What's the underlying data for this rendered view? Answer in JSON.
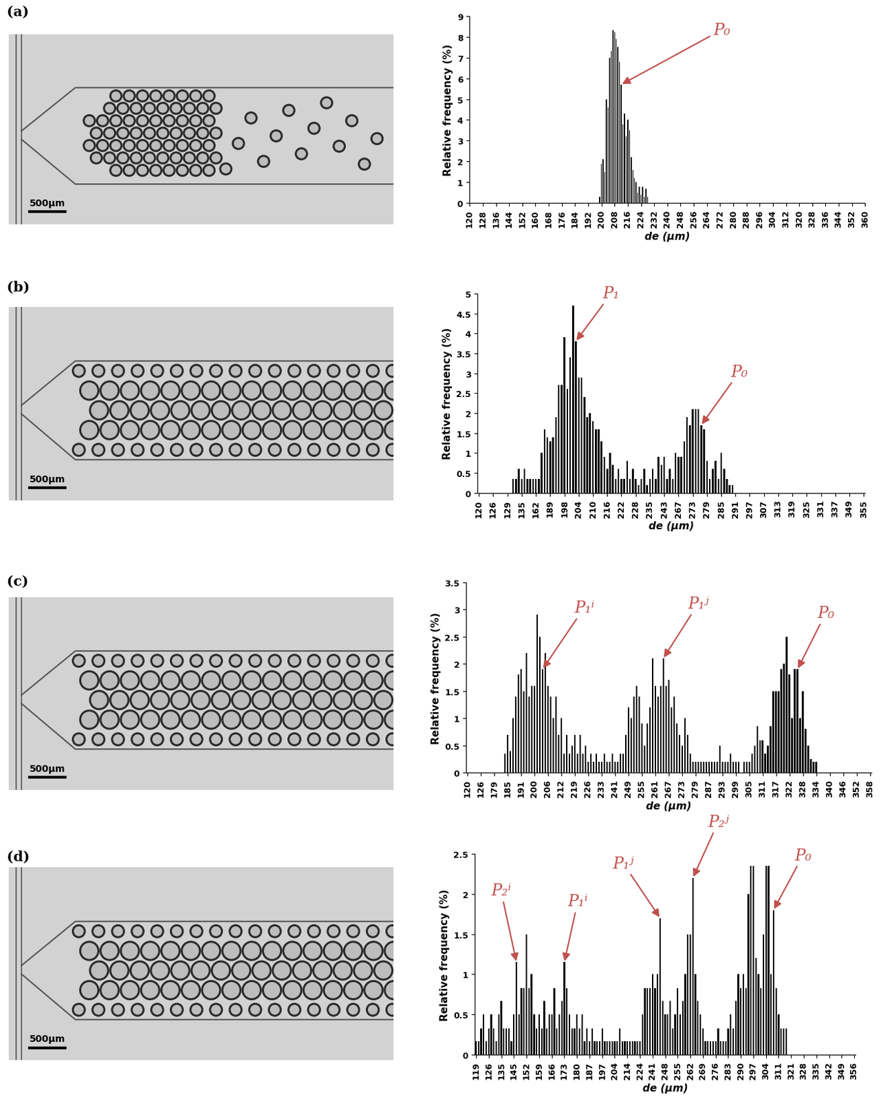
{
  "figure": {
    "panel_labels": [
      "(a)",
      "(b)",
      "(c)",
      "(d)"
    ],
    "scale_bar": "500μm"
  },
  "chart_data": [
    {
      "type": "bar",
      "x_label": "de (μm)",
      "y_label": "Relative frequency (%)",
      "color": "#000000",
      "x": [
        199,
        200,
        201,
        202,
        203,
        204,
        205,
        206,
        207,
        208,
        209,
        210,
        211,
        212,
        213,
        214,
        215,
        216,
        217,
        218,
        219,
        220,
        221,
        222,
        223,
        224,
        225,
        226,
        227,
        228
      ],
      "values": [
        0.3,
        1.9,
        2.1,
        1.5,
        5.0,
        4.6,
        7.0,
        7.3,
        8.3,
        8.2,
        7.9,
        7.5,
        6.8,
        5.7,
        3.8,
        4.3,
        3.2,
        4.0,
        3.5,
        2.2,
        1.6,
        1.2,
        1.0,
        0.5,
        0.8,
        0.4,
        0.8,
        0.3,
        0.7,
        0.3
      ],
      "xlim": [
        120,
        360
      ],
      "xticks": [
        120,
        128,
        136,
        144,
        152,
        160,
        168,
        176,
        184,
        192,
        200,
        208,
        216,
        224,
        232,
        240,
        248,
        256,
        264,
        272,
        280,
        288,
        296,
        304,
        312,
        320,
        328,
        336,
        344,
        352,
        360
      ],
      "ylim": [
        0,
        9
      ],
      "yticks": [
        0,
        1,
        2,
        3,
        4,
        5,
        6,
        7,
        8,
        9
      ],
      "annotations": [
        {
          "text": "P₀",
          "x": 212,
          "y": 5.7
        }
      ]
    },
    {
      "type": "bar",
      "x_label": "de (μm)",
      "y_label": "Relative frequency (%)",
      "color": "#000000",
      "categories": [
        "120",
        null,
        null,
        null,
        null,
        "126",
        null,
        null,
        null,
        null,
        "129",
        null,
        null,
        null,
        null,
        "135",
        null,
        null,
        null,
        null,
        "162",
        null,
        null,
        null,
        null,
        "189",
        null,
        null,
        null,
        null,
        "198",
        null,
        null,
        null,
        null,
        "204",
        null,
        null,
        null,
        null,
        "210",
        null,
        null,
        null,
        null,
        "216",
        null,
        null,
        null,
        null,
        "222",
        null,
        null,
        null,
        null,
        "228",
        null,
        null,
        null,
        null,
        "235",
        null,
        null,
        null,
        null,
        "243",
        null,
        null,
        null,
        null,
        "267",
        null,
        null,
        null,
        null,
        "273",
        null,
        null,
        null,
        null,
        "279",
        null,
        null,
        null,
        null,
        "285",
        null,
        null,
        null,
        null,
        "291",
        null,
        null,
        null,
        null,
        "297",
        null,
        null,
        null,
        null,
        "307",
        null,
        null,
        null,
        null,
        "313",
        null,
        null,
        null,
        null,
        "319",
        null,
        null,
        null,
        null,
        "325",
        null,
        null,
        null,
        null,
        "331",
        null,
        null,
        null,
        null,
        "337",
        null,
        null,
        null,
        null,
        "349",
        null,
        null,
        null,
        null,
        "355"
      ],
      "values": [
        0,
        0,
        0,
        0,
        0,
        0,
        0,
        0,
        0,
        0,
        0,
        0,
        0.35,
        0.35,
        0.6,
        0.35,
        0.6,
        0.35,
        0.35,
        0.35,
        0.35,
        0.35,
        1.0,
        1.6,
        1.4,
        1.3,
        1.4,
        1.9,
        2.7,
        2.7,
        3.9,
        2.6,
        3.4,
        4.7,
        3.8,
        2.9,
        2.9,
        2.4,
        1.9,
        2.0,
        1.8,
        1.6,
        1.6,
        1.3,
        0.9,
        0.6,
        1.0,
        0.7,
        0.35,
        0.6,
        0.35,
        0.35,
        0.8,
        0.35,
        0.6,
        0.35,
        0.2,
        0.35,
        0.6,
        0.2,
        0.35,
        0.6,
        0.35,
        0.9,
        0.7,
        0.9,
        0.35,
        0.6,
        0.35,
        1.0,
        0.9,
        0.9,
        1.3,
        1.9,
        1.7,
        2.1,
        2.1,
        2.1,
        1.7,
        1.6,
        0.8,
        0.35,
        0.6,
        0.8,
        0.35,
        1.0,
        0.6,
        0.35,
        0.2,
        0.2,
        0,
        0,
        0,
        0,
        0,
        0,
        0,
        0,
        0,
        0,
        0,
        0,
        0,
        0,
        0,
        0,
        0,
        0,
        0,
        0,
        0,
        0,
        0,
        0,
        0,
        0,
        0,
        0,
        0,
        0,
        0,
        0,
        0,
        0,
        0,
        0,
        0,
        0,
        0,
        0,
        0,
        0,
        0,
        0,
        0,
        0
      ],
      "ylim": [
        0,
        5
      ],
      "yticks": [
        0,
        0.5,
        1,
        1.5,
        2,
        2.5,
        3,
        3.5,
        4,
        4.5,
        5
      ],
      "annotations": [
        {
          "text": "P₁",
          "index": 34,
          "y": 3.8
        },
        {
          "text": "P₀",
          "index": 78,
          "y": 1.7
        }
      ]
    },
    {
      "type": "bar",
      "x_label": "de (μm)",
      "y_label": "Relative frequency (%)",
      "color": "#000000",
      "categories": [
        "120",
        null,
        null,
        null,
        null,
        "126",
        null,
        null,
        null,
        null,
        "179",
        null,
        null,
        null,
        null,
        "185",
        null,
        null,
        null,
        null,
        "191",
        null,
        null,
        null,
        null,
        "200",
        null,
        null,
        null,
        null,
        "206",
        null,
        null,
        null,
        null,
        "212",
        null,
        null,
        null,
        null,
        "219",
        null,
        null,
        null,
        null,
        "226",
        null,
        null,
        null,
        null,
        "233",
        null,
        null,
        null,
        null,
        "241",
        null,
        null,
        null,
        null,
        "249",
        null,
        null,
        null,
        null,
        "255",
        null,
        null,
        null,
        null,
        "261",
        null,
        null,
        null,
        null,
        "267",
        null,
        null,
        null,
        null,
        "273",
        null,
        null,
        null,
        null,
        "279",
        null,
        null,
        null,
        null,
        "287",
        null,
        null,
        null,
        null,
        "293",
        null,
        null,
        null,
        null,
        "299",
        null,
        null,
        null,
        null,
        "305",
        null,
        null,
        null,
        null,
        "311",
        null,
        null,
        null,
        null,
        "317",
        null,
        null,
        null,
        null,
        "322",
        null,
        null,
        null,
        null,
        "328",
        null,
        null,
        null,
        null,
        "334",
        null,
        null,
        null,
        null,
        "340",
        null,
        null,
        null,
        null,
        "346",
        null,
        null,
        null,
        null,
        "352",
        null,
        null,
        null,
        null,
        "358"
      ],
      "values": [
        0,
        0,
        0,
        0,
        0,
        0,
        0,
        0,
        0,
        0,
        0,
        0,
        0,
        0,
        0.35,
        0.7,
        0.4,
        1.0,
        1.4,
        1.8,
        1.9,
        1.5,
        2.2,
        1.4,
        1.6,
        1.6,
        2.9,
        2.5,
        1.9,
        2.2,
        1.6,
        1.4,
        1.0,
        1.4,
        0.7,
        1.0,
        0.35,
        0.7,
        0.35,
        0.5,
        0.7,
        0.35,
        0.7,
        0.35,
        0.5,
        0.2,
        0.35,
        0.2,
        0.35,
        0.2,
        0.2,
        0.35,
        0.2,
        0.2,
        0.35,
        0.2,
        0.2,
        0.35,
        0.35,
        0.7,
        1.2,
        1.0,
        1.4,
        1.6,
        1.4,
        0.9,
        0.5,
        0.9,
        1.2,
        2.1,
        1.6,
        1.4,
        1.6,
        2.1,
        1.6,
        1.7,
        1.2,
        1.4,
        0.9,
        0.7,
        0.5,
        1.0,
        0.7,
        0.35,
        0.2,
        0.2,
        0.2,
        0.2,
        0.2,
        0.2,
        0.2,
        0.2,
        0.2,
        0.2,
        0.5,
        0.2,
        0.2,
        0.2,
        0.35,
        0.2,
        0.2,
        0.2,
        0,
        0.2,
        0.2,
        0.2,
        0.35,
        0.5,
        0.85,
        0.6,
        0.6,
        0.35,
        0.5,
        0.85,
        1.5,
        1.5,
        1.5,
        1.9,
        2.0,
        2.5,
        1.8,
        1.0,
        1.9,
        1.9,
        1.0,
        1.5,
        0.8,
        0.5,
        0.25,
        0.2,
        0.2,
        0,
        0,
        0,
        0,
        0,
        0,
        0,
        0,
        0,
        0,
        0,
        0,
        0,
        0,
        0,
        0,
        0,
        0,
        0,
        0
      ],
      "ylim": [
        0,
        3.5
      ],
      "yticks": [
        0,
        0.5,
        1,
        1.5,
        2,
        2.5,
        3,
        3.5
      ],
      "annotations": [
        {
          "text": "P₁ⁱ",
          "index": 28,
          "y": 1.9
        },
        {
          "text": "P₁ʲ",
          "index": 73,
          "y": 2.1
        },
        {
          "text": "P₀",
          "index": 123,
          "y": 1.9
        }
      ]
    },
    {
      "type": "bar",
      "x_label": "de (μm)",
      "y_label": "Relative frequency (%)",
      "color": "#000000",
      "categories": [
        "119",
        null,
        null,
        null,
        null,
        "126",
        null,
        null,
        null,
        null,
        "135",
        null,
        null,
        null,
        null,
        "145",
        null,
        null,
        null,
        null,
        "152",
        null,
        null,
        null,
        null,
        "159",
        null,
        null,
        null,
        null,
        "166",
        null,
        null,
        null,
        null,
        "173",
        null,
        null,
        null,
        null,
        "180",
        null,
        null,
        null,
        null,
        "187",
        null,
        null,
        null,
        null,
        "197",
        null,
        null,
        null,
        null,
        "204",
        null,
        null,
        null,
        null,
        "214",
        null,
        null,
        null,
        null,
        "224",
        null,
        null,
        null,
        null,
        "241",
        null,
        null,
        null,
        null,
        "248",
        null,
        null,
        null,
        null,
        "255",
        null,
        null,
        null,
        null,
        "262",
        null,
        null,
        null,
        null,
        "269",
        null,
        null,
        null,
        null,
        "276",
        null,
        null,
        null,
        null,
        "283",
        null,
        null,
        null,
        null,
        "290",
        null,
        null,
        null,
        null,
        "297",
        null,
        null,
        null,
        null,
        "304",
        null,
        null,
        null,
        null,
        "311",
        null,
        null,
        null,
        null,
        "321",
        null,
        null,
        null,
        null,
        "328",
        null,
        null,
        null,
        null,
        "335",
        null,
        null,
        null,
        null,
        "342",
        null,
        null,
        null,
        null,
        "349",
        null,
        null,
        null,
        null,
        "356"
      ],
      "values": [
        0.17,
        0.17,
        0.33,
        0.5,
        0.17,
        0.33,
        0.5,
        0.33,
        0.17,
        0.5,
        0.67,
        0.33,
        0.33,
        0.33,
        0.17,
        0.5,
        1.15,
        0.5,
        0.83,
        0.83,
        1.5,
        0.83,
        1.0,
        0.5,
        0.33,
        0.5,
        0.33,
        0.67,
        0.33,
        0.5,
        0.5,
        0.83,
        0.33,
        0.5,
        0.67,
        1.15,
        0.83,
        0.5,
        0.33,
        0.33,
        0.5,
        0.33,
        0.5,
        0.17,
        0.33,
        0.17,
        0.33,
        0.17,
        0.17,
        0.17,
        0.33,
        0.17,
        0.17,
        0.17,
        0.17,
        0.17,
        0.17,
        0.33,
        0.17,
        0.17,
        0.17,
        0.17,
        0.17,
        0.17,
        0.17,
        0.17,
        0.5,
        0.83,
        0.83,
        0.83,
        1.0,
        0.83,
        1.0,
        1.7,
        0.67,
        0.5,
        0.5,
        0.67,
        0.33,
        0.5,
        0.83,
        0.5,
        0.67,
        1.0,
        1.5,
        1.5,
        2.2,
        1.0,
        0.67,
        0.5,
        0.33,
        0.17,
        0.17,
        0.17,
        0.17,
        0.17,
        0.33,
        0.17,
        0.17,
        0.17,
        0.33,
        0.5,
        0.33,
        0.67,
        1.0,
        0.83,
        1.0,
        0.83,
        2.0,
        2.35,
        2.35,
        1.2,
        1.0,
        0.83,
        1.5,
        2.35,
        2.35,
        1.0,
        1.8,
        0.83,
        0.5,
        0.33,
        0.33,
        0.33,
        0,
        0,
        0,
        0,
        0,
        0,
        0,
        0,
        0,
        0,
        0,
        0,
        0,
        0,
        0,
        0,
        0,
        0,
        0,
        0,
        0,
        0,
        0,
        0,
        0,
        0,
        0
      ],
      "ylim": [
        0,
        2.5
      ],
      "yticks": [
        0,
        0.5,
        1,
        1.5,
        2,
        2.5
      ],
      "annotations": [
        {
          "text": "P₂ⁱ",
          "index": 16,
          "y": 1.15
        },
        {
          "text": "P₁ⁱ",
          "index": 35,
          "y": 1.15
        },
        {
          "text": "P₁ʲ",
          "index": 73,
          "y": 1.7
        },
        {
          "text": "P₂ʲ",
          "index": 86,
          "y": 2.2
        },
        {
          "text": "P₀",
          "index": 118,
          "y": 1.8
        }
      ]
    }
  ]
}
